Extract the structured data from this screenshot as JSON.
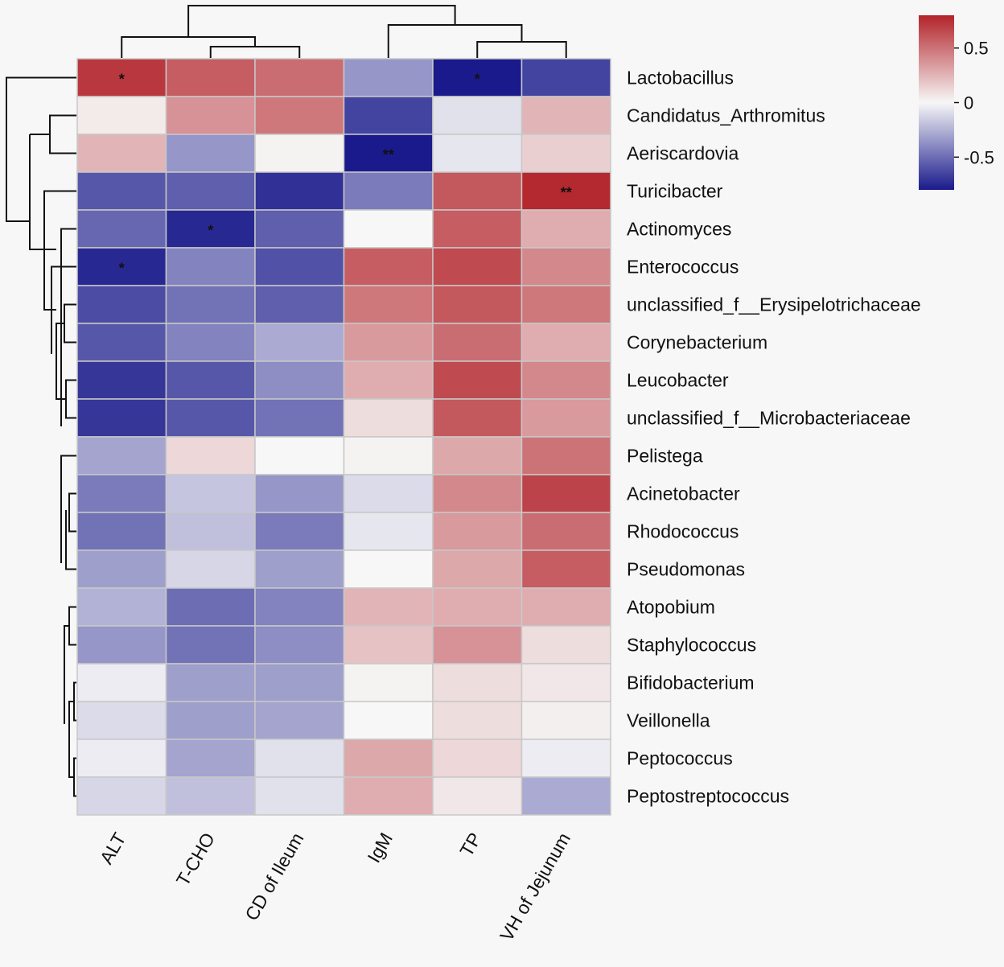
{
  "chart_data": {
    "type": "heatmap",
    "title": "",
    "columns": [
      "ALT",
      "T-CHO",
      "CD of Ileum",
      "IgM",
      "TP",
      "VH of Jejunum"
    ],
    "rows": [
      "Lactobacillus",
      "Candidatus_Arthromitus",
      "Aeriscardovia",
      "Turicibacter",
      "Actinomyces",
      "Enterococcus",
      "unclassified_f__Erysipelotrichaceae",
      "Corynebacterium",
      "Leucobacter",
      "unclassified_f__Microbacteriaceae",
      "Pelistega",
      "Acinetobacter",
      "Rhodococcus",
      "Pseudomonas",
      "Atopobium",
      "Staphylococcus",
      "Bifidobacterium",
      "Veillonella",
      "Peptococcus",
      "Peptostreptococcus"
    ],
    "values": [
      [
        0.72,
        0.58,
        0.52,
        -0.35,
        -0.8,
        -0.65
      ],
      [
        0.05,
        0.38,
        0.48,
        -0.65,
        -0.08,
        0.25
      ],
      [
        0.25,
        -0.35,
        0.02,
        -0.8,
        -0.06,
        0.15
      ],
      [
        -0.58,
        -0.55,
        -0.72,
        -0.45,
        0.6,
        0.78
      ],
      [
        -0.52,
        -0.75,
        -0.55,
        0.0,
        0.58,
        0.28
      ],
      [
        -0.75,
        -0.42,
        -0.6,
        0.58,
        0.65,
        0.42
      ],
      [
        -0.62,
        -0.48,
        -0.55,
        0.48,
        0.6,
        0.48
      ],
      [
        -0.58,
        -0.42,
        -0.28,
        0.35,
        0.52,
        0.28
      ],
      [
        -0.7,
        -0.58,
        -0.38,
        0.28,
        0.65,
        0.42
      ],
      [
        -0.7,
        -0.58,
        -0.48,
        0.1,
        0.6,
        0.35
      ],
      [
        -0.3,
        0.12,
        0.0,
        0.02,
        0.3,
        0.5
      ],
      [
        -0.45,
        -0.18,
        -0.35,
        -0.1,
        0.42,
        0.68
      ],
      [
        -0.48,
        -0.2,
        -0.45,
        -0.06,
        0.35,
        0.52
      ],
      [
        -0.32,
        -0.12,
        -0.32,
        0.0,
        0.3,
        0.58
      ],
      [
        -0.25,
        -0.5,
        -0.42,
        0.25,
        0.28,
        0.28
      ],
      [
        -0.35,
        -0.48,
        -0.38,
        0.2,
        0.38,
        0.1
      ],
      [
        -0.04,
        -0.32,
        -0.32,
        0.02,
        0.1,
        0.06
      ],
      [
        -0.1,
        -0.32,
        -0.3,
        0.0,
        0.1,
        0.03
      ],
      [
        -0.04,
        -0.3,
        -0.08,
        0.3,
        0.12,
        -0.04
      ],
      [
        -0.12,
        -0.2,
        -0.08,
        0.28,
        0.06,
        -0.28
      ]
    ],
    "significance": [
      {
        "row": 0,
        "col": 0,
        "mark": "*"
      },
      {
        "row": 0,
        "col": 4,
        "mark": "*"
      },
      {
        "row": 2,
        "col": 3,
        "mark": "**"
      },
      {
        "row": 3,
        "col": 5,
        "mark": "**"
      },
      {
        "row": 4,
        "col": 1,
        "mark": "*"
      },
      {
        "row": 5,
        "col": 0,
        "mark": "*"
      }
    ],
    "color_scale": {
      "range": [
        -0.8,
        0.8
      ],
      "low": "#1a1a8c",
      "mid": "#f7f7f7",
      "high": "#b2232a",
      "ticks": [
        {
          "value": 0.5,
          "label": "0.5"
        },
        {
          "value": 0,
          "label": "0"
        },
        {
          "value": -0.5,
          "label": "-0.5"
        }
      ]
    },
    "row_dendrogram": true,
    "column_dendrogram": true
  }
}
